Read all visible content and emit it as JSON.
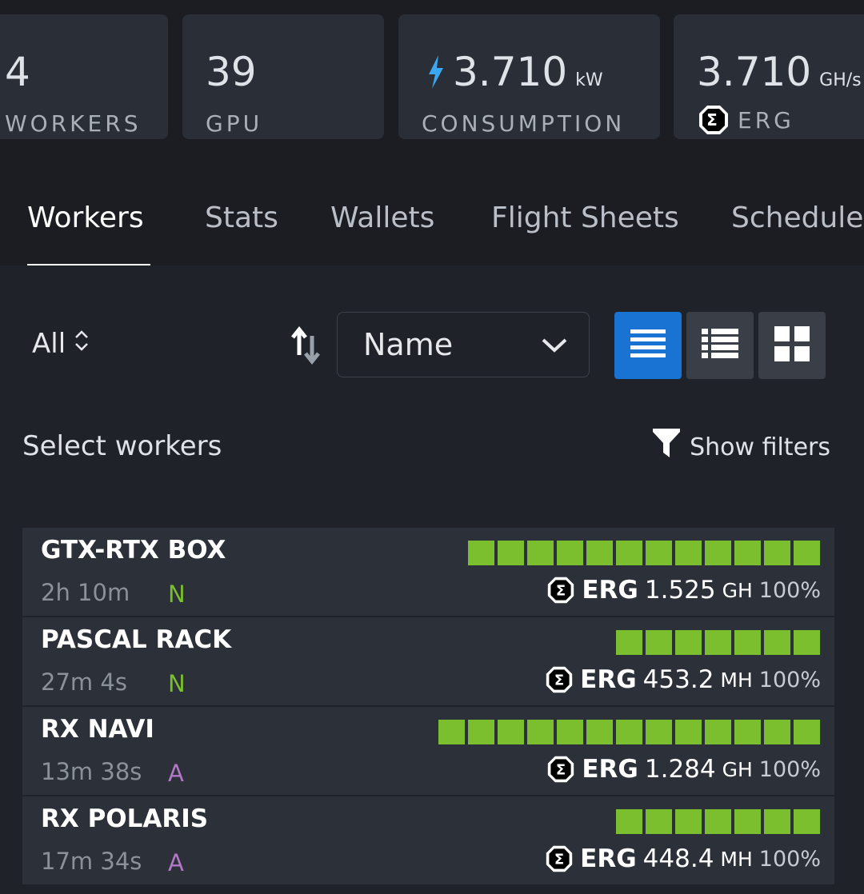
{
  "stats": [
    {
      "value": "4",
      "unit": "",
      "label": "WORKERS"
    },
    {
      "value": "39",
      "unit": "",
      "label": "GPU"
    },
    {
      "value": "3.710",
      "unit": "kW",
      "label": "CONSUMPTION",
      "icon": "bolt-icon"
    },
    {
      "value": "3.710",
      "unit": "GH/s",
      "label": "ERG",
      "icon": "erg-coin-icon"
    }
  ],
  "tabs": [
    "Workers",
    "Stats",
    "Wallets",
    "Flight Sheets",
    "Schedule"
  ],
  "active_tab": "Workers",
  "toolbar": {
    "filter_label": "All",
    "sort_value": "Name",
    "view_modes": [
      "list-view",
      "compact-list-view",
      "grid-view"
    ],
    "active_view": "list-view"
  },
  "select_workers_label": "Select workers",
  "show_filters_label": "Show filters",
  "colors": {
    "accent": "#1873d3",
    "gpu_ok": "#7bbf2e",
    "brand_nvidia": "#7bbf2e",
    "brand_amd": "#b277c6",
    "bolt": "#3ba7f0"
  },
  "workers": [
    {
      "name": "GTX-RTX BOX",
      "uptime": "2h 10m",
      "brand": "N",
      "gpu_count": 12,
      "coin": "ERG",
      "hashrate": "1.525",
      "unit": "GH",
      "percent": "100%"
    },
    {
      "name": "PASCAL RACK",
      "uptime": "27m 4s",
      "brand": "N",
      "gpu_count": 7,
      "coin": "ERG",
      "hashrate": "453.2",
      "unit": "MH",
      "percent": "100%"
    },
    {
      "name": "RX NAVI",
      "uptime": "13m 38s",
      "brand": "A",
      "gpu_count": 13,
      "coin": "ERG",
      "hashrate": "1.284",
      "unit": "GH",
      "percent": "100%"
    },
    {
      "name": "RX POLARIS",
      "uptime": "17m 34s",
      "brand": "A",
      "gpu_count": 7,
      "coin": "ERG",
      "hashrate": "448.4",
      "unit": "MH",
      "percent": "100%"
    }
  ]
}
